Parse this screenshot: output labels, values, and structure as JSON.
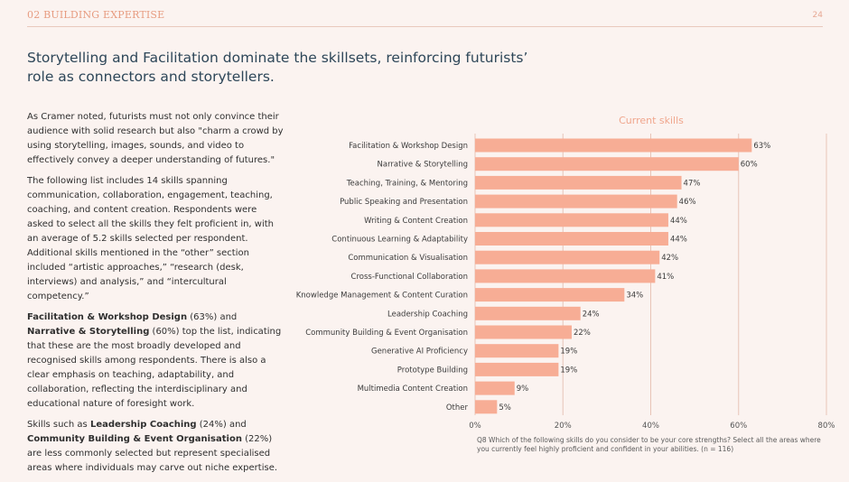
{
  "header": {
    "section_title": "02 BUILDING EXPERTISE",
    "page_number": "24"
  },
  "headline": "Storytelling and Facilitation dominate the skillsets, reinforcing futurists’ role as connectors and storytellers.",
  "body": {
    "p1": "As Cramer noted, futurists must not only convince their audience with solid research but also \"charm a crowd by using storytelling, images, sounds, and video to effectively convey a deeper understanding of futures.\"",
    "p2": "The following list includes 14 skills spanning communication, collaboration, engagement, teaching, coaching, and content creation. Respondents were asked to select all the skills they felt proficient in, with an average of 5.2 skills selected per respondent. Additional skills mentioned in the “other” section included “artistic approaches,” “research (desk, interviews) and analysis,” and “intercultural competency.”",
    "p3": {
      "b1": "Facilitation & Workshop Design",
      "t1": " (63%) and ",
      "b2": "Narrative & Storytelling",
      "t2": " (60%) top the list, indicating that these are the most broadly developed and recognised skills among respondents. There is also a clear emphasis on teaching, adaptability, and collaboration, reflecting the interdisciplinary and educational nature of foresight work."
    },
    "p4": {
      "t1": "Skills such as ",
      "b1": "Leadership Coaching",
      "t2": " (24%) and ",
      "b2": "Community Building & Event Organisation",
      "t3": " (22%) are less commonly selected but represent specialised areas where individuals may carve out niche expertise."
    }
  },
  "footnote": "Q8 Which of the following skills do you consider to be your core strengths? Select all the areas where you currently feel highly proficient and confident in your abilities. (n = 116)",
  "colors": {
    "bar": "#f7ad95",
    "gridline": "#e8c4b7",
    "accent": "#e79c81",
    "headline": "#2d4658",
    "background": "#fbf3f0"
  },
  "chart_data": {
    "type": "bar",
    "orientation": "horizontal",
    "title": "Current skills",
    "categories": [
      "Facilitation & Workshop Design",
      "Narrative & Storytelling",
      "Teaching, Training, & Mentoring",
      "Public Speaking and Presentation",
      "Writing & Content Creation",
      "Continuous Learning & Adaptability",
      "Communication & Visualisation",
      "Cross-Functional Collaboration",
      "Knowledge Management & Content Curation",
      "Leadership Coaching",
      "Community Building & Event Organisation",
      "Generative AI Proficiency",
      "Prototype Building",
      "Multimedia Content Creation",
      "Other"
    ],
    "values": [
      63,
      60,
      47,
      46,
      44,
      44,
      42,
      41,
      34,
      24,
      22,
      19,
      19,
      9,
      5
    ],
    "value_labels": [
      "63%",
      "60%",
      "47%",
      "46%",
      "44%",
      "44%",
      "42%",
      "41%",
      "34%",
      "24%",
      "22%",
      "19%",
      "19%",
      "9%",
      "5%"
    ],
    "xlim": [
      0,
      80
    ],
    "xticks": [
      0,
      20,
      40,
      60,
      80
    ],
    "xtick_labels": [
      "0%",
      "20%",
      "40%",
      "60%",
      "80%"
    ],
    "xlabel": "",
    "ylabel": "",
    "grid": true,
    "legend": "none"
  }
}
